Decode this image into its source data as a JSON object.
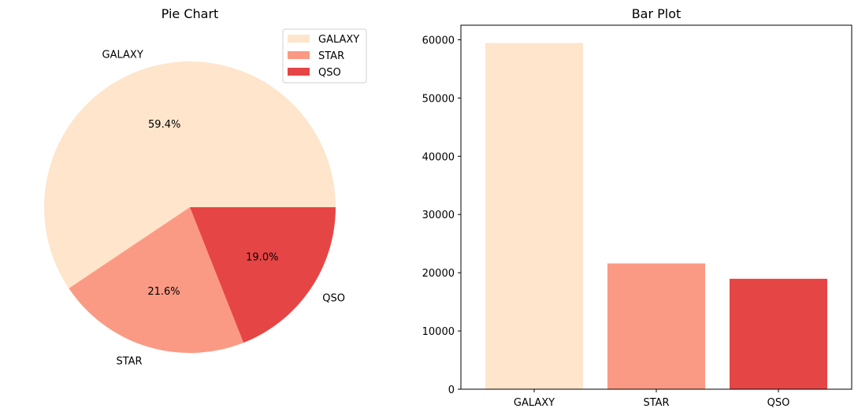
{
  "colors": {
    "GALAXY": "#fee5cb",
    "STAR": "#fb9a84",
    "QSO": "#e64545"
  },
  "chart_data": [
    {
      "type": "pie",
      "title": "Pie Chart",
      "categories": [
        "GALAXY",
        "STAR",
        "QSO"
      ],
      "values": [
        59.4,
        21.6,
        19.0
      ],
      "value_labels": [
        "59.4%",
        "21.6%",
        "19.0%"
      ],
      "legend": {
        "entries": [
          "GALAXY",
          "STAR",
          "QSO"
        ],
        "placement": "upper-right"
      }
    },
    {
      "type": "bar",
      "title": "Bar Plot",
      "categories": [
        "GALAXY",
        "STAR",
        "QSO"
      ],
      "values": [
        59445,
        21594,
        18961
      ],
      "xlabel": "",
      "ylabel": "",
      "ylim": [
        0,
        62500
      ],
      "yticks": [
        0,
        10000,
        20000,
        30000,
        40000,
        50000,
        60000
      ],
      "ytick_labels": [
        "0",
        "10000",
        "20000",
        "30000",
        "40000",
        "50000",
        "60000"
      ],
      "grid": false
    }
  ]
}
